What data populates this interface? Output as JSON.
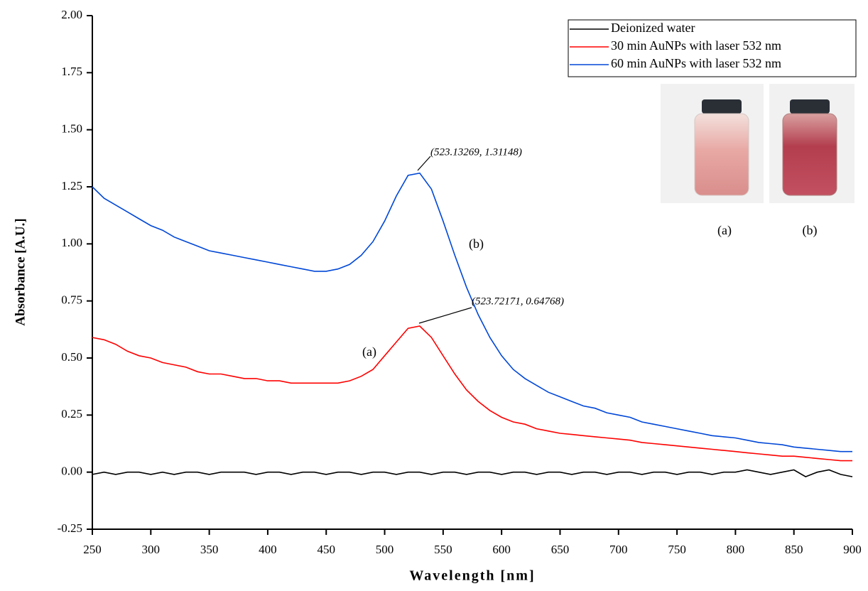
{
  "chart_data": {
    "type": "line",
    "xlabel": "Wavelength [nm]",
    "ylabel": "Absorbance [A.U.]",
    "x": [
      250,
      260,
      270,
      280,
      290,
      300,
      310,
      320,
      330,
      340,
      350,
      360,
      370,
      380,
      390,
      400,
      410,
      420,
      430,
      440,
      450,
      460,
      470,
      480,
      490,
      500,
      510,
      520,
      530,
      540,
      550,
      560,
      570,
      580,
      590,
      600,
      610,
      620,
      630,
      640,
      650,
      660,
      670,
      680,
      690,
      700,
      710,
      720,
      730,
      740,
      750,
      760,
      770,
      780,
      790,
      800,
      810,
      820,
      830,
      840,
      850,
      860,
      870,
      880,
      890,
      900
    ],
    "series": [
      {
        "name": "Deionized water",
        "color": "#000000",
        "values": [
          -0.01,
          0,
          -0.01,
          0,
          0,
          -0.01,
          0,
          -0.01,
          0,
          0,
          -0.01,
          0,
          0,
          0,
          -0.01,
          0,
          0,
          -0.01,
          0,
          0,
          -0.01,
          0,
          0,
          -0.01,
          0,
          0,
          -0.01,
          0,
          0,
          -0.01,
          0,
          0,
          -0.01,
          0,
          0,
          -0.01,
          0,
          0,
          -0.01,
          0,
          0,
          -0.01,
          0,
          0,
          -0.01,
          0,
          0,
          -0.01,
          0,
          0,
          -0.01,
          0,
          0,
          -0.01,
          0,
          0,
          0.01,
          0,
          -0.01,
          0,
          0.01,
          -0.02,
          0,
          0.01,
          -0.01,
          -0.02
        ]
      },
      {
        "name": "30 min AuNPs with laser 532 nm",
        "color": "#ff0000",
        "values": [
          0.59,
          0.58,
          0.56,
          0.53,
          0.51,
          0.5,
          0.48,
          0.47,
          0.46,
          0.44,
          0.43,
          0.43,
          0.42,
          0.41,
          0.41,
          0.4,
          0.4,
          0.39,
          0.39,
          0.39,
          0.39,
          0.39,
          0.4,
          0.42,
          0.45,
          0.51,
          0.57,
          0.63,
          0.64,
          0.59,
          0.51,
          0.43,
          0.36,
          0.31,
          0.27,
          0.24,
          0.22,
          0.21,
          0.19,
          0.18,
          0.17,
          0.165,
          0.16,
          0.155,
          0.15,
          0.145,
          0.14,
          0.13,
          0.125,
          0.12,
          0.115,
          0.11,
          0.105,
          0.1,
          0.095,
          0.09,
          0.085,
          0.08,
          0.075,
          0.07,
          0.07,
          0.065,
          0.06,
          0.055,
          0.05,
          0.05
        ]
      },
      {
        "name": "60 min AuNPs with laser 532 nm",
        "color": "#0047d6",
        "values": [
          1.25,
          1.2,
          1.17,
          1.14,
          1.11,
          1.08,
          1.06,
          1.03,
          1.01,
          0.99,
          0.97,
          0.96,
          0.95,
          0.94,
          0.93,
          0.92,
          0.91,
          0.9,
          0.89,
          0.88,
          0.88,
          0.89,
          0.91,
          0.95,
          1.01,
          1.1,
          1.21,
          1.3,
          1.31,
          1.24,
          1.1,
          0.95,
          0.81,
          0.69,
          0.59,
          0.51,
          0.45,
          0.41,
          0.38,
          0.35,
          0.33,
          0.31,
          0.29,
          0.28,
          0.26,
          0.25,
          0.24,
          0.22,
          0.21,
          0.2,
          0.19,
          0.18,
          0.17,
          0.16,
          0.155,
          0.15,
          0.14,
          0.13,
          0.125,
          0.12,
          0.11,
          0.105,
          0.1,
          0.095,
          0.09,
          0.09
        ]
      }
    ],
    "xlim": [
      250,
      900
    ],
    "ylim": [
      -0.25,
      2.0
    ],
    "xticks": [
      250,
      300,
      350,
      400,
      450,
      500,
      550,
      600,
      650,
      700,
      750,
      800,
      850,
      900
    ],
    "yticks": [
      {
        "value": -0.25,
        "label": "-0.25"
      },
      {
        "value": 0,
        "label": "0.00"
      },
      {
        "value": 0.25,
        "label": "0.25"
      },
      {
        "value": 0.5,
        "label": "0.50"
      },
      {
        "value": 0.75,
        "label": "0.75"
      },
      {
        "value": 1.0,
        "label": "1.00"
      },
      {
        "value": 1.25,
        "label": "1.25"
      },
      {
        "value": 1.5,
        "label": "1.50"
      },
      {
        "value": 1.75,
        "label": "1.75"
      },
      {
        "value": 2.0,
        "label": "2.00"
      }
    ],
    "grid": false,
    "legend": "upper right",
    "annotations": [
      "(523.13269, 1.31148)",
      "(523.72171, 0.64768)",
      "(a)",
      "(b)"
    ],
    "inset_labels": [
      "(a)",
      "(b)"
    ]
  }
}
